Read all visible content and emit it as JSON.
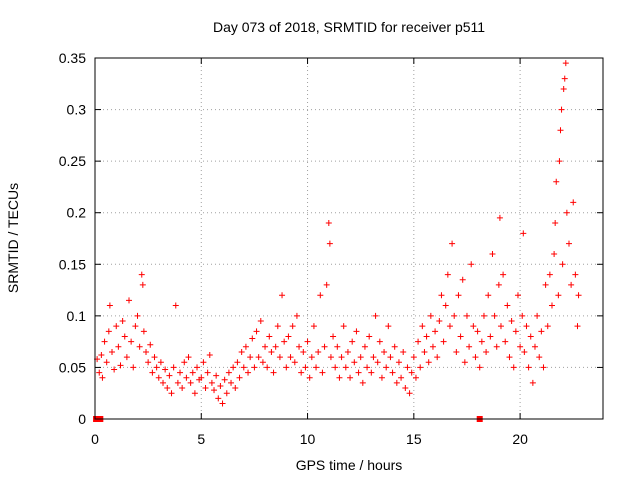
{
  "chart_data": {
    "type": "scatter",
    "title": "Day 073 of 2018, SRMTID for receiver p511",
    "xlabel": "GPS time / hours",
    "ylabel": "SRMTID / TECUs",
    "xlim": [
      0,
      23.9
    ],
    "ylim": [
      0,
      0.35
    ],
    "x_ticks": [
      {
        "value": 0,
        "label": "0"
      },
      {
        "value": 5,
        "label": "5"
      },
      {
        "value": 10,
        "label": "10"
      },
      {
        "value": 15,
        "label": "15"
      },
      {
        "value": 20,
        "label": "20"
      }
    ],
    "y_ticks": [
      {
        "value": 0,
        "label": "0"
      },
      {
        "value": 0.05,
        "label": "0.05"
      },
      {
        "value": 0.1,
        "label": "0.1"
      },
      {
        "value": 0.15,
        "label": "0.15"
      },
      {
        "value": 0.2,
        "label": "0.2"
      },
      {
        "value": 0.25,
        "label": "0.25"
      },
      {
        "value": 0.3,
        "label": "0.3"
      },
      {
        "value": 0.35,
        "label": "0.35"
      }
    ],
    "grid": true,
    "marker": "+",
    "series_color": "#ff0000",
    "zero_markers_x": [
      0.05,
      0.25,
      18.1
    ],
    "series": [
      {
        "name": "SRMTID",
        "points": [
          [
            0.1,
            0.058
          ],
          [
            0.2,
            0.045
          ],
          [
            0.3,
            0.062
          ],
          [
            0.35,
            0.04
          ],
          [
            0.45,
            0.075
          ],
          [
            0.55,
            0.055
          ],
          [
            0.65,
            0.085
          ],
          [
            0.7,
            0.11
          ],
          [
            0.8,
            0.065
          ],
          [
            0.9,
            0.048
          ],
          [
            1.0,
            0.09
          ],
          [
            1.1,
            0.07
          ],
          [
            1.2,
            0.052
          ],
          [
            1.3,
            0.095
          ],
          [
            1.4,
            0.08
          ],
          [
            1.5,
            0.06
          ],
          [
            1.6,
            0.115
          ],
          [
            1.7,
            0.075
          ],
          [
            1.8,
            0.05
          ],
          [
            1.9,
            0.09
          ],
          [
            2.0,
            0.1
          ],
          [
            2.1,
            0.07
          ],
          [
            2.2,
            0.14
          ],
          [
            2.25,
            0.13
          ],
          [
            2.3,
            0.085
          ],
          [
            2.4,
            0.065
          ],
          [
            2.5,
            0.055
          ],
          [
            2.6,
            0.072
          ],
          [
            2.7,
            0.045
          ],
          [
            2.8,
            0.06
          ],
          [
            2.9,
            0.05
          ],
          [
            3.0,
            0.04
          ],
          [
            3.1,
            0.055
          ],
          [
            3.2,
            0.035
          ],
          [
            3.3,
            0.048
          ],
          [
            3.4,
            0.03
          ],
          [
            3.5,
            0.042
          ],
          [
            3.6,
            0.025
          ],
          [
            3.7,
            0.05
          ],
          [
            3.8,
            0.11
          ],
          [
            3.9,
            0.035
          ],
          [
            4.0,
            0.045
          ],
          [
            4.1,
            0.03
          ],
          [
            4.2,
            0.055
          ],
          [
            4.3,
            0.04
          ],
          [
            4.4,
            0.06
          ],
          [
            4.5,
            0.035
          ],
          [
            4.6,
            0.045
          ],
          [
            4.7,
            0.025
          ],
          [
            4.8,
            0.05
          ],
          [
            4.9,
            0.038
          ],
          [
            5.0,
            0.04
          ],
          [
            5.1,
            0.055
          ],
          [
            5.2,
            0.03
          ],
          [
            5.3,
            0.045
          ],
          [
            5.4,
            0.062
          ],
          [
            5.5,
            0.035
          ],
          [
            5.6,
            0.028
          ],
          [
            5.7,
            0.042
          ],
          [
            5.8,
            0.02
          ],
          [
            5.9,
            0.032
          ],
          [
            6.0,
            0.015
          ],
          [
            6.1,
            0.038
          ],
          [
            6.2,
            0.025
          ],
          [
            6.3,
            0.045
          ],
          [
            6.4,
            0.035
          ],
          [
            6.5,
            0.05
          ],
          [
            6.6,
            0.03
          ],
          [
            6.7,
            0.055
          ],
          [
            6.8,
            0.04
          ],
          [
            6.9,
            0.065
          ],
          [
            7.0,
            0.05
          ],
          [
            7.1,
            0.07
          ],
          [
            7.2,
            0.045
          ],
          [
            7.3,
            0.06
          ],
          [
            7.4,
            0.078
          ],
          [
            7.5,
            0.05
          ],
          [
            7.6,
            0.085
          ],
          [
            7.7,
            0.06
          ],
          [
            7.8,
            0.095
          ],
          [
            7.9,
            0.055
          ],
          [
            8.0,
            0.07
          ],
          [
            8.1,
            0.05
          ],
          [
            8.2,
            0.08
          ],
          [
            8.3,
            0.065
          ],
          [
            8.4,
            0.045
          ],
          [
            8.5,
            0.07
          ],
          [
            8.6,
            0.09
          ],
          [
            8.7,
            0.06
          ],
          [
            8.8,
            0.12
          ],
          [
            8.9,
            0.075
          ],
          [
            9.0,
            0.05
          ],
          [
            9.1,
            0.08
          ],
          [
            9.2,
            0.06
          ],
          [
            9.3,
            0.09
          ],
          [
            9.4,
            0.055
          ],
          [
            9.5,
            0.1
          ],
          [
            9.6,
            0.07
          ],
          [
            9.7,
            0.045
          ],
          [
            9.8,
            0.065
          ],
          [
            9.9,
            0.05
          ],
          [
            10.0,
            0.075
          ],
          [
            10.1,
            0.04
          ],
          [
            10.2,
            0.06
          ],
          [
            10.3,
            0.09
          ],
          [
            10.4,
            0.05
          ],
          [
            10.5,
            0.065
          ],
          [
            10.6,
            0.12
          ],
          [
            10.7,
            0.045
          ],
          [
            10.8,
            0.07
          ],
          [
            10.9,
            0.13
          ],
          [
            11.0,
            0.19
          ],
          [
            11.05,
            0.17
          ],
          [
            11.1,
            0.06
          ],
          [
            11.2,
            0.08
          ],
          [
            11.3,
            0.05
          ],
          [
            11.4,
            0.07
          ],
          [
            11.5,
            0.04
          ],
          [
            11.6,
            0.06
          ],
          [
            11.7,
            0.09
          ],
          [
            11.8,
            0.05
          ],
          [
            11.9,
            0.065
          ],
          [
            12.0,
            0.04
          ],
          [
            12.1,
            0.075
          ],
          [
            12.2,
            0.055
          ],
          [
            12.3,
            0.085
          ],
          [
            12.4,
            0.045
          ],
          [
            12.5,
            0.06
          ],
          [
            12.6,
            0.035
          ],
          [
            12.7,
            0.07
          ],
          [
            12.8,
            0.05
          ],
          [
            12.9,
            0.08
          ],
          [
            13.0,
            0.045
          ],
          [
            13.1,
            0.06
          ],
          [
            13.2,
            0.1
          ],
          [
            13.3,
            0.055
          ],
          [
            13.4,
            0.075
          ],
          [
            13.5,
            0.04
          ],
          [
            13.6,
            0.065
          ],
          [
            13.7,
            0.05
          ],
          [
            13.8,
            0.09
          ],
          [
            13.9,
            0.06
          ],
          [
            14.0,
            0.045
          ],
          [
            14.1,
            0.07
          ],
          [
            14.2,
            0.035
          ],
          [
            14.3,
            0.055
          ],
          [
            14.4,
            0.04
          ],
          [
            14.5,
            0.065
          ],
          [
            14.6,
            0.03
          ],
          [
            14.7,
            0.05
          ],
          [
            14.8,
            0.025
          ],
          [
            14.9,
            0.045
          ],
          [
            15.0,
            0.06
          ],
          [
            15.1,
            0.04
          ],
          [
            15.2,
            0.075
          ],
          [
            15.3,
            0.05
          ],
          [
            15.4,
            0.09
          ],
          [
            15.5,
            0.065
          ],
          [
            15.6,
            0.08
          ],
          [
            15.7,
            0.055
          ],
          [
            15.8,
            0.1
          ],
          [
            15.9,
            0.07
          ],
          [
            16.0,
            0.085
          ],
          [
            16.1,
            0.06
          ],
          [
            16.2,
            0.095
          ],
          [
            16.3,
            0.12
          ],
          [
            16.4,
            0.075
          ],
          [
            16.5,
            0.11
          ],
          [
            16.6,
            0.14
          ],
          [
            16.7,
            0.09
          ],
          [
            16.8,
            0.17
          ],
          [
            16.9,
            0.1
          ],
          [
            17.0,
            0.065
          ],
          [
            17.1,
            0.12
          ],
          [
            17.2,
            0.08
          ],
          [
            17.3,
            0.135
          ],
          [
            17.4,
            0.055
          ],
          [
            17.5,
            0.1
          ],
          [
            17.6,
            0.07
          ],
          [
            17.7,
            0.15
          ],
          [
            17.8,
            0.09
          ],
          [
            17.9,
            0.06
          ],
          [
            18.0,
            0.085
          ],
          [
            18.1,
            0.05
          ],
          [
            18.2,
            0.075
          ],
          [
            18.3,
            0.1
          ],
          [
            18.4,
            0.065
          ],
          [
            18.5,
            0.12
          ],
          [
            18.6,
            0.08
          ],
          [
            18.7,
            0.16
          ],
          [
            18.8,
            0.1
          ],
          [
            18.9,
            0.07
          ],
          [
            19.0,
            0.13
          ],
          [
            19.05,
            0.195
          ],
          [
            19.1,
            0.09
          ],
          [
            19.2,
            0.14
          ],
          [
            19.3,
            0.075
          ],
          [
            19.4,
            0.11
          ],
          [
            19.5,
            0.06
          ],
          [
            19.6,
            0.095
          ],
          [
            19.7,
            0.05
          ],
          [
            19.8,
            0.085
          ],
          [
            19.9,
            0.12
          ],
          [
            20.0,
            0.07
          ],
          [
            20.1,
            0.1
          ],
          [
            20.15,
            0.18
          ],
          [
            20.2,
            0.065
          ],
          [
            20.3,
            0.09
          ],
          [
            20.4,
            0.05
          ],
          [
            20.5,
            0.08
          ],
          [
            20.6,
            0.035
          ],
          [
            20.7,
            0.07
          ],
          [
            20.8,
            0.1
          ],
          [
            20.9,
            0.06
          ],
          [
            21.0,
            0.085
          ],
          [
            21.1,
            0.05
          ],
          [
            21.2,
            0.13
          ],
          [
            21.3,
            0.09
          ],
          [
            21.4,
            0.14
          ],
          [
            21.5,
            0.11
          ],
          [
            21.6,
            0.16
          ],
          [
            21.65,
            0.19
          ],
          [
            21.7,
            0.23
          ],
          [
            21.8,
            0.12
          ],
          [
            21.85,
            0.25
          ],
          [
            21.9,
            0.28
          ],
          [
            21.95,
            0.3
          ],
          [
            22.0,
            0.15
          ],
          [
            22.05,
            0.32
          ],
          [
            22.1,
            0.33
          ],
          [
            22.15,
            0.345
          ],
          [
            22.2,
            0.2
          ],
          [
            22.3,
            0.17
          ],
          [
            22.4,
            0.13
          ],
          [
            22.5,
            0.21
          ],
          [
            22.6,
            0.14
          ],
          [
            22.7,
            0.09
          ],
          [
            22.75,
            0.12
          ]
        ]
      }
    ]
  }
}
